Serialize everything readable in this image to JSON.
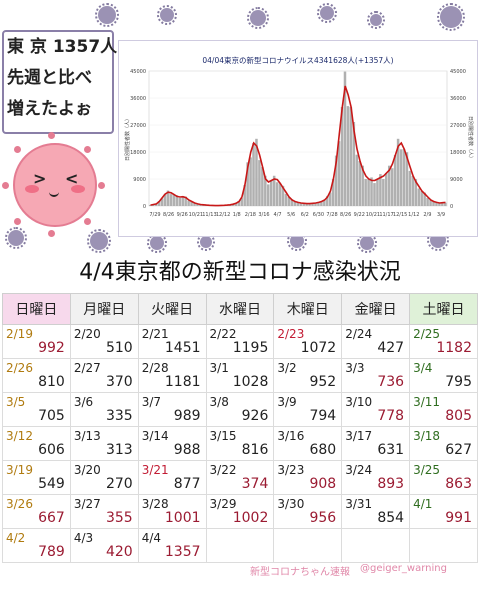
{
  "speech": {
    "lines": [
      "東 京 1357人",
      "先週と比べ",
      "増えたよぉ"
    ]
  },
  "chart_data": {
    "type": "bar",
    "title": "04/04東京の新型コロナウイルス4341628人(+1357人)",
    "ylabel_left": "日別陽性者数（人）",
    "ylabel_right": "日別陽性者数（人）",
    "ylim": [
      0,
      45000
    ],
    "y_ticks": [
      "0",
      "9000",
      "18000",
      "27000",
      "36000",
      "45000"
    ],
    "x_ticks": [
      "7/29",
      "8/28",
      "9/28",
      "10/28",
      "11/28",
      "12/28",
      "1/28",
      "2/28",
      "3/30",
      "4/30",
      "5/31",
      "6/30",
      "7/31",
      "8/31",
      "9/30",
      "10/31",
      "11/30",
      "12/31",
      "1/31",
      "2/28",
      "3/31"
    ],
    "x_tick_labels_visible": [
      "7/29",
      "8/26",
      "9/26",
      "10/21",
      "11/13",
      "12/12",
      "1/8",
      "2/18",
      "3/16",
      "4/7",
      "5/6",
      "6/2",
      "6/30",
      "7/28",
      "8/26",
      "9/22",
      "10/21",
      "11/17",
      "12/15",
      "1/12",
      "2/9",
      "3/9"
    ],
    "bar_color": "#b0b0b0",
    "line_color": "#c81818",
    "series": [
      {
        "name": "",
        "values": [
          300,
          500,
          700,
          1500,
          2800,
          4000,
          4600,
          4400,
          3800,
          3200,
          3000,
          3100,
          2800,
          2000,
          1500,
          1000,
          700,
          500,
          400,
          300,
          250,
          200,
          150,
          150,
          200,
          250,
          300,
          400,
          600,
          900,
          1500,
          3000,
          7000,
          13000,
          18000,
          21000,
          20000,
          17000,
          13000,
          9000,
          8000,
          8500,
          9000,
          8800,
          7500,
          6000,
          4500,
          3000,
          2000,
          1500,
          1200,
          1000,
          900,
          800,
          800,
          900,
          1000,
          1200,
          1500,
          2000,
          3000,
          5000,
          9000,
          15000,
          24000,
          33000,
          40000,
          37000,
          33000,
          25000,
          19000,
          15000,
          12000,
          10000,
          9000,
          8500,
          8500,
          9000,
          9500,
          10000,
          11000,
          12000,
          14000,
          17000,
          20000,
          21000,
          19000,
          16000,
          13000,
          10000,
          8000,
          6500,
          5000,
          4000,
          3000,
          2000,
          1500,
          1200,
          1000,
          1100,
          1200
        ]
      }
    ]
  },
  "title": "4/4東京都の新型コロナ感染状況",
  "weekdays": [
    "日曜日",
    "月曜日",
    "火曜日",
    "水曜日",
    "木曜日",
    "金曜日",
    "土曜日"
  ],
  "weeks": [
    [
      {
        "d": "2/19",
        "v": "992"
      },
      {
        "d": "2/20",
        "v": "510"
      },
      {
        "d": "2/21",
        "v": "1451"
      },
      {
        "d": "2/22",
        "v": "1195"
      },
      {
        "d": "2/23",
        "v": "1072",
        "hol": true
      },
      {
        "d": "2/24",
        "v": "427"
      },
      {
        "d": "2/25",
        "v": "1182"
      }
    ],
    [
      {
        "d": "2/26",
        "v": "810"
      },
      {
        "d": "2/27",
        "v": "370"
      },
      {
        "d": "2/28",
        "v": "1181"
      },
      {
        "d": "3/1",
        "v": "1028"
      },
      {
        "d": "3/2",
        "v": "952"
      },
      {
        "d": "3/3",
        "v": "736"
      },
      {
        "d": "3/4",
        "v": "795"
      }
    ],
    [
      {
        "d": "3/5",
        "v": "705"
      },
      {
        "d": "3/6",
        "v": "335"
      },
      {
        "d": "3/7",
        "v": "989"
      },
      {
        "d": "3/8",
        "v": "926"
      },
      {
        "d": "3/9",
        "v": "794"
      },
      {
        "d": "3/10",
        "v": "778"
      },
      {
        "d": "3/11",
        "v": "805"
      }
    ],
    [
      {
        "d": "3/12",
        "v": "606"
      },
      {
        "d": "3/13",
        "v": "313"
      },
      {
        "d": "3/14",
        "v": "988"
      },
      {
        "d": "3/15",
        "v": "816"
      },
      {
        "d": "3/16",
        "v": "680"
      },
      {
        "d": "3/17",
        "v": "631"
      },
      {
        "d": "3/18",
        "v": "627"
      }
    ],
    [
      {
        "d": "3/19",
        "v": "549"
      },
      {
        "d": "3/20",
        "v": "270"
      },
      {
        "d": "3/21",
        "v": "877",
        "hol": true
      },
      {
        "d": "3/22",
        "v": "374"
      },
      {
        "d": "3/23",
        "v": "908"
      },
      {
        "d": "3/24",
        "v": "893"
      },
      {
        "d": "3/25",
        "v": "863"
      }
    ],
    [
      {
        "d": "3/26",
        "v": "667"
      },
      {
        "d": "3/27",
        "v": "355"
      },
      {
        "d": "3/28",
        "v": "1001"
      },
      {
        "d": "3/29",
        "v": "1002"
      },
      {
        "d": "3/30",
        "v": "956"
      },
      {
        "d": "3/31",
        "v": "854"
      },
      {
        "d": "4/1",
        "v": "991"
      }
    ],
    [
      {
        "d": "4/2",
        "v": "789"
      },
      {
        "d": "4/3",
        "v": "420"
      },
      {
        "d": "4/4",
        "v": "1357"
      },
      {
        "d": "",
        "v": ""
      },
      {
        "d": "",
        "v": ""
      },
      {
        "d": "",
        "v": ""
      },
      {
        "d": "",
        "v": ""
      }
    ]
  ],
  "num_red": {
    "0": [
      0,
      6
    ],
    "1": [
      5
    ],
    "2": [
      5,
      6
    ],
    "3": [],
    "4": [
      3,
      4,
      5,
      6
    ],
    "5": [
      0,
      1,
      2,
      3,
      4,
      6
    ],
    "6": [
      0,
      1,
      2
    ]
  },
  "footer": {
    "text": "新型コロナちゃん速報",
    "handle": "@geiger_warning"
  }
}
